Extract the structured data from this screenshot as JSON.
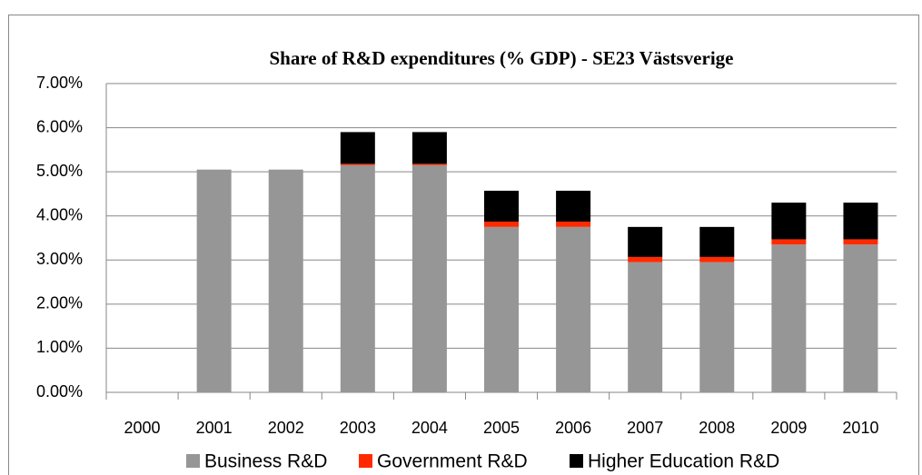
{
  "chart_data": {
    "type": "stacked-bar",
    "title": "Share of R&D expenditures (% GDP) - SE23 Västsverige",
    "categories": [
      "2000",
      "2001",
      "2002",
      "2003",
      "2004",
      "2005",
      "2006",
      "2007",
      "2008",
      "2009",
      "2010"
    ],
    "series": [
      {
        "name": "Business R&D",
        "color": "#969696",
        "values": [
          null,
          5.05,
          5.05,
          5.15,
          5.15,
          3.75,
          3.75,
          2.95,
          2.95,
          3.35,
          3.35
        ]
      },
      {
        "name": "Government R&D",
        "color": "#ff2a00",
        "values": [
          null,
          null,
          null,
          0.03,
          0.03,
          0.12,
          0.12,
          0.12,
          0.12,
          0.12,
          0.12
        ]
      },
      {
        "name": "Higher Education R&D",
        "color": "#000000",
        "values": [
          null,
          null,
          null,
          0.72,
          0.72,
          0.7,
          0.7,
          0.68,
          0.68,
          0.83,
          0.83
        ]
      }
    ],
    "ylim": [
      0,
      7
    ],
    "yticks": [
      {
        "value": 0,
        "label": "0.00%"
      },
      {
        "value": 1,
        "label": "1.00%"
      },
      {
        "value": 2,
        "label": "2.00%"
      },
      {
        "value": 3,
        "label": "3.00%"
      },
      {
        "value": 4,
        "label": "4.00%"
      },
      {
        "value": 5,
        "label": "5.00%"
      },
      {
        "value": 6,
        "label": "6.00%"
      },
      {
        "value": 7,
        "label": "7.00%"
      }
    ],
    "grid": true,
    "legend": "bottom"
  }
}
